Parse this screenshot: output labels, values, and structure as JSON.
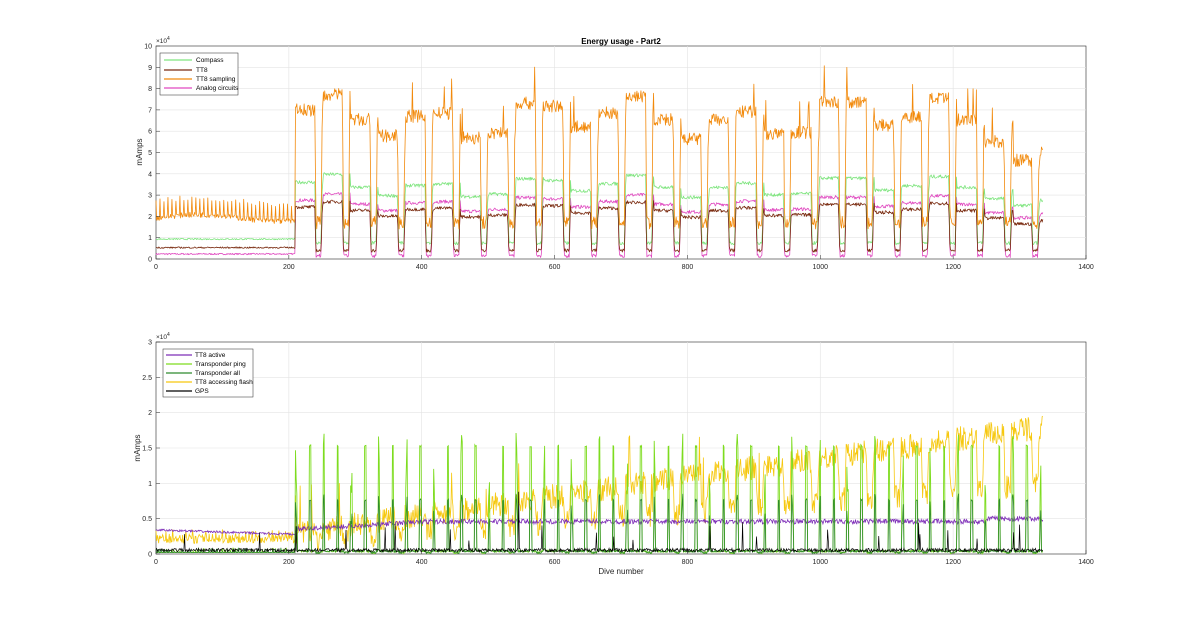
{
  "chart_data": [
    {
      "type": "line",
      "title": "Energy usage - Part2",
      "xlabel": "",
      "ylabel": "mAmps",
      "xlim": [
        0,
        1400
      ],
      "ylim": [
        0,
        100000
      ],
      "y_exponent_label": "×10",
      "y_exponent_power": "4",
      "x_ticks": [
        0,
        200,
        400,
        600,
        800,
        1000,
        1200,
        1400
      ],
      "x_tick_labels": [
        "0",
        "200",
        "400",
        "600",
        "800",
        "1000",
        "1200",
        "1400"
      ],
      "y_ticks": [
        0,
        10000,
        20000,
        30000,
        40000,
        50000,
        60000,
        70000,
        80000,
        90000,
        100000
      ],
      "y_tick_labels": [
        "0",
        "1",
        "2",
        "3",
        "4",
        "5",
        "6",
        "7",
        "8",
        "9",
        "10"
      ],
      "grid": true,
      "legend_position": "top-left",
      "dives_start": 210,
      "dives_end": 1335,
      "series": [
        {
          "name": "Compass",
          "color": "#7fe57f",
          "pre_level": 9000,
          "hi_level": 34000,
          "lo_level": 7500,
          "end_value": 26000
        },
        {
          "name": "TT8",
          "color": "#7a2b10",
          "pre_level": 5000,
          "hi_level": 23000,
          "lo_level": 4000,
          "end_value": 17000
        },
        {
          "name": "TT8 sampling",
          "color": "#f28a0c",
          "pre_level": 18000,
          "hi_level": 66000,
          "lo_level": 17000,
          "end_value": 48000
        },
        {
          "name": "Analog circuits",
          "color": "#e049c0",
          "pre_level": 2000,
          "hi_level": 26000,
          "lo_level": 1500,
          "end_value": 20000
        }
      ]
    },
    {
      "type": "line",
      "title": "",
      "xlabel": "Dive number",
      "ylabel": "mAmps",
      "xlim": [
        0,
        1400
      ],
      "ylim": [
        0,
        30000
      ],
      "y_exponent_label": "×10",
      "y_exponent_power": "4",
      "x_ticks": [
        0,
        200,
        400,
        600,
        800,
        1000,
        1200,
        1400
      ],
      "x_tick_labels": [
        "0",
        "200",
        "400",
        "600",
        "800",
        "1000",
        "1200",
        "1400"
      ],
      "y_ticks": [
        0,
        5000,
        10000,
        15000,
        20000,
        25000,
        30000
      ],
      "y_tick_labels": [
        "0",
        "0.5",
        "1",
        "1.5",
        "2",
        "2.5",
        "3"
      ],
      "grid": true,
      "legend_position": "top-left",
      "series": [
        {
          "name": "TT8 active",
          "color": "#7e2fb8",
          "start_value": 3400,
          "end_value": 5200
        },
        {
          "name": "Transponder ping",
          "color": "#7ddc1f",
          "peak_value": 17000
        },
        {
          "name": "Transponder all",
          "color": "#2f8a2f",
          "peak_value": 8500
        },
        {
          "name": "TT8 accessing flash",
          "color": "#f6c80f",
          "start_value": 1500,
          "end_value": 18000
        },
        {
          "name": "GPS",
          "color": "#000000",
          "base_value": 300
        }
      ]
    }
  ]
}
